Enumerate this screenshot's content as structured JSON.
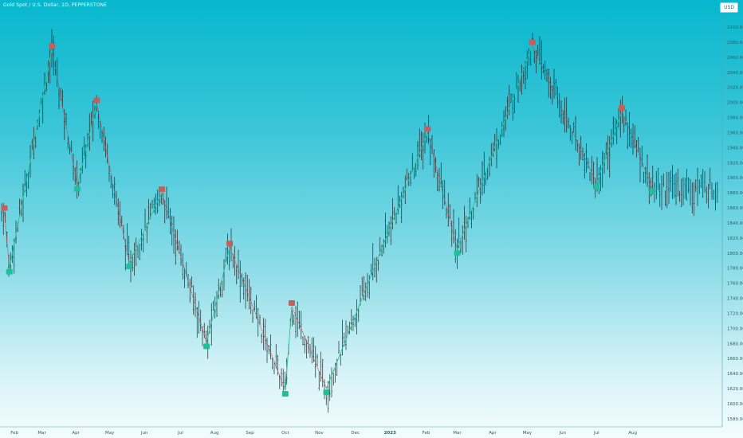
{
  "header": {
    "title": "Gold Spot / U.S. Dollar, 1D, PEPPERSTONE",
    "currency": "USD"
  },
  "colors": {
    "bar": "#1e2b2e",
    "swing_high": "#c1605c",
    "swing_low": "#1fbf9a",
    "down_leg": "#c24d48",
    "up_leg": "#22c49b"
  },
  "chart_data": {
    "type": "ohlc-bar",
    "title": "Gold Spot / U.S. Dollar, 1D, PEPPERSTONE",
    "y_axis": {
      "ticks": [
        "1580.00",
        "1600.00",
        "1620.00",
        "1640.00",
        "1660.00",
        "1680.00",
        "1700.00",
        "1720.00",
        "1740.00",
        "1760.00",
        "1780.00",
        "1800.00",
        "1820.00",
        "1840.00",
        "1860.00",
        "1880.00",
        "1900.00",
        "1920.00",
        "1940.00",
        "1960.00",
        "1980.00",
        "2000.00",
        "2020.00",
        "2040.00",
        "2060.00",
        "2080.00",
        "2100.00"
      ],
      "ylim": [
        1570,
        2110
      ]
    },
    "x_axis": {
      "ticks": [
        {
          "label": "Feb",
          "t": 0.02
        },
        {
          "label": "Mar",
          "t": 0.058
        },
        {
          "label": "Apr",
          "t": 0.105
        },
        {
          "label": "May",
          "t": 0.152
        },
        {
          "label": "Jun",
          "t": 0.2
        },
        {
          "label": "Jul",
          "t": 0.25
        },
        {
          "label": "Aug",
          "t": 0.297
        },
        {
          "label": "Sep",
          "t": 0.346
        },
        {
          "label": "Oct",
          "t": 0.395
        },
        {
          "label": "Nov",
          "t": 0.442
        },
        {
          "label": "Dec",
          "t": 0.492
        },
        {
          "label": "2023",
          "t": 0.54,
          "bold": true
        },
        {
          "label": "Feb",
          "t": 0.59
        },
        {
          "label": "Mar",
          "t": 0.633
        },
        {
          "label": "Apr",
          "t": 0.682
        },
        {
          "label": "May",
          "t": 0.73
        },
        {
          "label": "Jun",
          "t": 0.779
        },
        {
          "label": "Jul",
          "t": 0.826
        },
        {
          "label": "Aug",
          "t": 0.876
        }
      ]
    },
    "swing_points": [
      {
        "t": 0.006,
        "price": 1855,
        "kind": "high"
      },
      {
        "t": 0.013,
        "price": 1780,
        "kind": "low"
      },
      {
        "t": 0.072,
        "price": 2070,
        "kind": "high"
      },
      {
        "t": 0.107,
        "price": 1890,
        "kind": "low"
      },
      {
        "t": 0.134,
        "price": 1998,
        "kind": "high"
      },
      {
        "t": 0.179,
        "price": 1787,
        "kind": "low"
      },
      {
        "t": 0.224,
        "price": 1880,
        "kind": "high"
      },
      {
        "t": 0.286,
        "price": 1681,
        "kind": "low"
      },
      {
        "t": 0.318,
        "price": 1808,
        "kind": "high"
      },
      {
        "t": 0.395,
        "price": 1618,
        "kind": "low"
      },
      {
        "t": 0.404,
        "price": 1729,
        "kind": "high"
      },
      {
        "t": 0.452,
        "price": 1620,
        "kind": "low"
      },
      {
        "t": 0.592,
        "price": 1960,
        "kind": "high"
      },
      {
        "t": 0.633,
        "price": 1805,
        "kind": "low"
      },
      {
        "t": 0.737,
        "price": 2075,
        "kind": "high"
      },
      {
        "t": 0.826,
        "price": 1893,
        "kind": "low"
      },
      {
        "t": 0.861,
        "price": 1988,
        "kind": "high"
      },
      {
        "t": 0.903,
        "price": 1887,
        "kind": "low"
      }
    ]
  }
}
